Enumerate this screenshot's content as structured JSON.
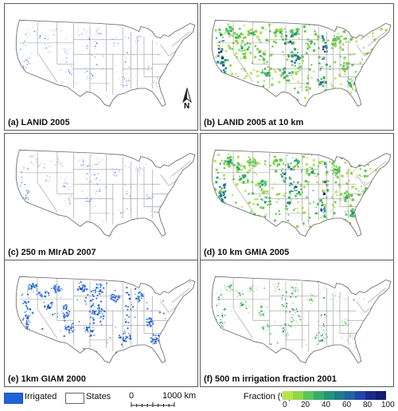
{
  "panels": [
    {
      "id": "a",
      "label": "(a) LANID 2005",
      "style": "binary-light"
    },
    {
      "id": "b",
      "label": "(b) LANID 2005 at 10 km",
      "style": "fraction-dense"
    },
    {
      "id": "c",
      "label": "(c) 250 m MIrAD 2007",
      "style": "binary-light"
    },
    {
      "id": "d",
      "label": "(d) 10 km GMIA 2005",
      "style": "fraction-dense"
    },
    {
      "id": "e",
      "label": "(e) 1km GIAM 2000",
      "style": "binary-dense"
    },
    {
      "id": "f",
      "label": "(f) 500 m irrigation fraction 2001",
      "style": "fraction-light"
    }
  ],
  "north_arrow": "N",
  "legend": {
    "irrigated_label": "Irrigated",
    "states_label": "States",
    "scale_left": "0",
    "scale_right": "1000 km",
    "fraction_title": "Fraction (%)",
    "fraction_ticks": [
      "0",
      "20",
      "40",
      "60",
      "80",
      "100"
    ]
  },
  "colors": {
    "irrigated": "#1e63d8",
    "state_line": "#9a9a9a",
    "fraction_ramp": [
      "#b8e34f",
      "#8fd64a",
      "#5cc45a",
      "#36ad6a",
      "#23957a",
      "#1f7b86",
      "#2363a0",
      "#2146a8",
      "#1b2a8a",
      "#141c6e"
    ]
  }
}
